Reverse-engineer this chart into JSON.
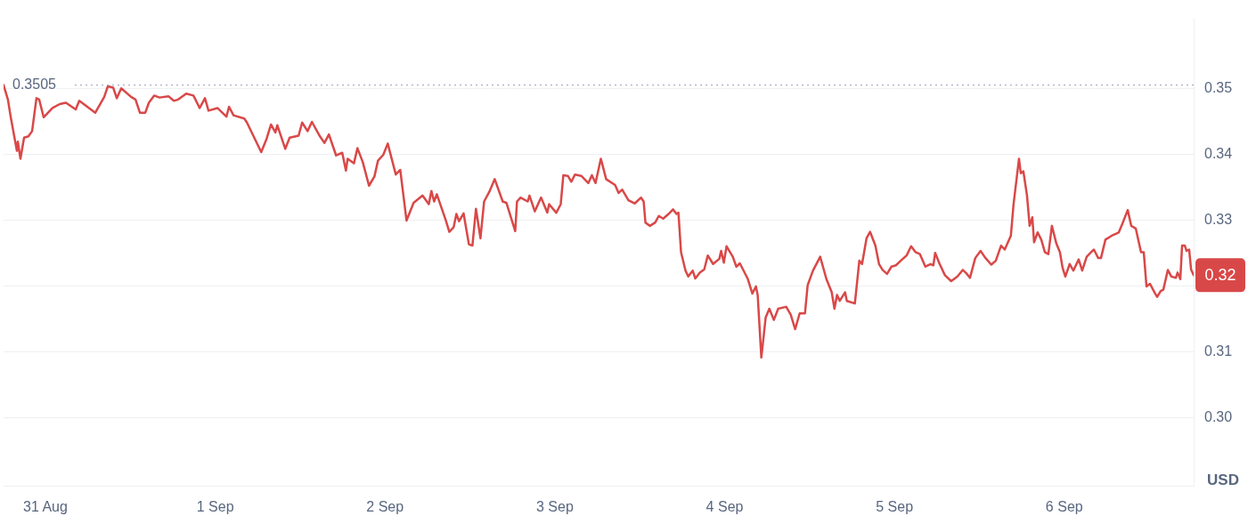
{
  "chart_data": {
    "type": "line",
    "ylabel": "USD",
    "xlim": [
      "--08-30T18:05",
      "--09-06T18:17"
    ],
    "xticks": [
      {
        "value": "--08-31",
        "label": "31 Aug"
      },
      {
        "value": "--09-01",
        "label": "1 Sep"
      },
      {
        "value": "--09-02",
        "label": "2 Sep"
      },
      {
        "value": "--09-03",
        "label": "3 Sep"
      },
      {
        "value": "--09-04",
        "label": "4 Sep"
      },
      {
        "value": "--09-05",
        "label": "5 Sep"
      },
      {
        "value": "--09-06",
        "label": "6 Sep"
      }
    ],
    "ylim": [
      0.2895,
      0.3605
    ],
    "yticks": [
      {
        "value": 0.3,
        "label": "0.30"
      },
      0.31,
      {
        "value": 0.32,
        "label": null
      },
      0.33,
      0.34,
      0.35
    ],
    "grid": "y",
    "legend": false,
    "marker": "none",
    "line_style": "solid",
    "ref_lines": [
      {
        "axis": "y",
        "value": 0.3505,
        "label": "0.3505",
        "color": "#a6b0c3",
        "line_style": "dotted"
      }
    ],
    "annotations": [
      "0.32"
    ],
    "x": [
      "--08-30T18:05",
      "--08-30T18:42",
      "--08-30T19:05",
      "--08-30T19:58",
      "--08-30T20:06",
      "--08-30T20:28",
      "--08-30T20:59",
      "--08-30T21:36",
      "--08-30T22:07",
      "--08-30T22:44",
      "--08-30T23:07",
      "--08-30T23:45",
      "--08-31T01:00",
      "--08-31T02:01",
      "--08-31T02:54",
      "--08-31T04:17",
      "--08-31T04:47",
      "--08-31T07:03",
      "--08-31T08:19",
      "--08-31T08:49",
      "--08-31T09:35",
      "--08-31T10:05",
      "--08-31T10:43",
      "--08-31T12:06",
      "--08-31T12:44",
      "--08-31T13:21",
      "--08-31T14:07",
      "--08-31T14:37",
      "--08-31T15:22",
      "--08-31T16:08",
      "--08-31T17:23",
      "--08-31T18:09",
      "--08-31T18:46",
      "--08-31T19:54",
      "--08-31T20:55",
      "--08-31T21:48",
      "--08-31T22:33",
      "--08-31T23:03",
      "--09-01T00:19",
      "--09-01T01:35",
      "--09-01T01:57",
      "--09-01T02:35",
      "--09-01T04:06",
      "--09-01T04:29",
      "--09-01T06:30",
      "--09-01T07:15",
      "--09-01T07:53",
      "--09-01T08:30",
      "--09-01T08:46",
      "--09-01T09:54",
      "--09-01T10:31",
      "--09-01T11:47",
      "--09-01T12:17",
      "--09-01T13:03",
      "--09-01T13:40",
      "--09-01T14:48",
      "--09-01T15:26",
      "--09-01T16:04",
      "--09-01T17:05",
      "--09-01T17:57",
      "--09-01T18:28",
      "--09-01T18:43",
      "--09-01T19:36",
      "--09-01T20:06",
      "--09-01T20:51",
      "--09-01T21:44",
      "--09-01T22:30",
      "--09-01T23:00",
      "--09-01T23:45",
      "--09-02T00:23",
      "--09-02T01:31",
      "--09-02T02:09",
      "--09-02T03:02",
      "--09-02T04:02",
      "--09-02T05:18",
      "--09-02T06:11",
      "--09-02T06:33",
      "--09-02T06:56",
      "--09-02T07:19",
      "--09-02T08:34",
      "--09-02T09:05",
      "--09-02T09:42",
      "--09-02T10:05",
      "--09-02T10:28",
      "--09-02T11:06",
      "--09-02T11:51",
      "--09-02T12:21",
      "--09-02T12:51",
      "--09-02T13:29",
      "--09-02T14:00",
      "--09-02T14:45",
      "--09-02T15:30",
      "--09-02T16:38",
      "--09-02T17:09",
      "--09-02T17:54",
      "--09-02T18:24",
      "--09-02T18:39",
      "--09-02T19:09",
      "--09-02T20:10",
      "--09-02T20:25",
      "--09-02T21:10",
      "--09-02T22:03",
      "--09-02T22:56",
      "--09-02T23:11",
      "--09-03T00:12",
      "--09-03T00:50",
      "--09-03T01:12",
      "--09-03T01:50",
      "--09-03T02:20",
      "--09-03T02:51",
      "--09-03T03:44",
      "--09-03T04:44",
      "--09-03T05:14",
      "--09-03T05:45",
      "--09-03T06:30",
      "--09-03T07:15",
      "--09-03T08:31",
      "--09-03T09:01",
      "--09-03T09:31",
      "--09-03T10:24",
      "--09-03T11:17",
      "--09-03T12:10",
      "--09-03T12:33",
      "--09-03T12:48",
      "--09-03T13:26",
      "--09-03T14:11",
      "--09-03T14:41",
      "--09-03T15:19",
      "--09-03T16:04",
      "--09-03T16:42",
      "--09-03T17:12",
      "--09-03T17:28",
      "--09-03T17:50",
      "--09-03T18:28",
      "--09-03T18:51",
      "--09-03T19:29",
      "--09-03T19:51",
      "--09-03T20:29",
      "--09-03T21:07",
      "--09-03T21:37",
      "--09-03T22:22",
      "--09-03T23:15",
      "--09-03T23:30",
      "--09-03T23:53",
      "--09-04T00:16",
      "--09-04T01:09",
      "--09-04T01:39",
      "--09-04T02:09",
      "--09-04T03:17",
      "--09-04T03:55",
      "--09-04T04:25",
      "--09-04T04:40",
      "--09-04T05:11",
      "--09-04T05:48",
      "--09-04T06:19",
      "--09-04T06:57",
      "--09-04T07:34",
      "--09-04T08:42",
      "--09-04T09:20",
      "--09-04T09:58",
      "--09-04T10:36",
      "--09-04T11:21",
      "--09-04T11:44",
      "--09-04T12:29",
      "--09-04T13:30",
      "--09-04T14:23",
      "--09-04T15:08",
      "--09-04T15:31",
      "--09-04T15:53",
      "--09-04T16:16",
      "--09-04T17:01",
      "--09-04T17:16",
      "--09-04T18:24",
      "--09-04T19:02",
      "--09-04T19:25",
      "--09-04T20:03",
      "--09-04T20:33",
      "--09-04T21:18",
      "--09-04T21:49",
      "--09-04T22:19",
      "--09-04T22:57",
      "--09-04T23:34",
      "--09-05T00:12",
      "--09-05T01:05",
      "--09-05T01:43",
      "--09-05T02:21",
      "--09-05T02:59",
      "--09-05T03:36",
      "--09-05T04:22",
      "--09-05T05:07",
      "--09-05T05:30",
      "--09-05T05:45",
      "--09-05T06:23",
      "--09-05T07:08",
      "--09-05T08:01",
      "--09-05T08:54",
      "--09-05T09:39",
      "--09-05T10:09",
      "--09-05T10:40",
      "--09-05T11:25",
      "--09-05T12:10",
      "--09-05T12:48",
      "--09-05T13:41",
      "--09-05T14:19",
      "--09-05T15:04",
      "--09-05T15:35",
      "--09-05T16:27",
      "--09-05T16:50",
      "--09-05T17:36",
      "--09-05T17:51",
      "--09-05T18:13",
      "--09-05T18:44",
      "--09-05T19:06",
      "--09-05T19:29",
      "--09-05T19:44",
      "--09-05T20:14",
      "--09-05T20:45",
      "--09-05T21:15",
      "--09-05T21:45",
      "--09-05T22:15",
      "--09-05T22:53",
      "--09-05T23:23",
      "--09-05T23:46",
      "--09-06T00:09",
      "--09-06T00:46",
      "--09-06T01:17",
      "--09-06T02:02",
      "--09-06T02:32",
      "--09-06T03:10",
      "--09-06T03:48",
      "--09-06T04:11",
      "--09-06T04:48",
      "--09-06T05:11",
      "--09-06T05:49",
      "--09-06T06:42",
      "--09-06T07:42",
      "--09-06T08:12",
      "--09-06T08:58",
      "--09-06T09:28",
      "--09-06T10:06",
      "--09-06T10:51",
      "--09-06T11:14",
      "--09-06T11:37",
      "--09-06T12:07",
      "--09-06T12:45",
      "--09-06T13:07",
      "--09-06T13:38",
      "--09-06T14:00",
      "--09-06T14:38",
      "--09-06T15:08",
      "--09-06T15:46",
      "--09-06T16:01",
      "--09-06T16:24",
      "--09-06T16:39",
      "--09-06T17:02",
      "--09-06T17:17",
      "--09-06T17:39",
      "--09-06T17:55",
      "--09-06T18:17"
    ],
    "series": [
      {
        "color": "#d94848",
        "values": [
          0.3505,
          0.3483,
          0.3457,
          0.3405,
          0.3419,
          0.3393,
          0.3425,
          0.3427,
          0.3435,
          0.3485,
          0.3483,
          0.3456,
          0.347,
          0.3476,
          0.3478,
          0.3468,
          0.3481,
          0.3463,
          0.3487,
          0.3503,
          0.3501,
          0.3485,
          0.35,
          0.3487,
          0.3483,
          0.3463,
          0.3463,
          0.3478,
          0.3489,
          0.3486,
          0.3488,
          0.3481,
          0.3483,
          0.3492,
          0.3489,
          0.347,
          0.3485,
          0.3466,
          0.347,
          0.3457,
          0.3472,
          0.3459,
          0.3454,
          0.3448,
          0.3403,
          0.3423,
          0.3445,
          0.3433,
          0.3444,
          0.3408,
          0.3425,
          0.3428,
          0.3448,
          0.3435,
          0.3449,
          0.3427,
          0.3417,
          0.343,
          0.3398,
          0.3402,
          0.3375,
          0.3393,
          0.3386,
          0.3409,
          0.3388,
          0.3352,
          0.3366,
          0.339,
          0.3399,
          0.3416,
          0.3369,
          0.3376,
          0.3299,
          0.3326,
          0.3337,
          0.3324,
          0.3344,
          0.3328,
          0.3339,
          0.33,
          0.3282,
          0.3289,
          0.3309,
          0.3298,
          0.331,
          0.3263,
          0.3261,
          0.3317,
          0.3272,
          0.3328,
          0.3343,
          0.3362,
          0.3328,
          0.3326,
          0.33,
          0.3283,
          0.3328,
          0.3334,
          0.3328,
          0.3337,
          0.3313,
          0.3334,
          0.3311,
          0.3324,
          0.3311,
          0.3324,
          0.3368,
          0.3367,
          0.3358,
          0.3369,
          0.3367,
          0.3356,
          0.3368,
          0.3356,
          0.3393,
          0.3362,
          0.3353,
          0.3341,
          0.3346,
          0.333,
          0.3325,
          0.3334,
          0.3328,
          0.3296,
          0.3291,
          0.3296,
          0.3306,
          0.3302,
          0.3309,
          0.3316,
          0.3309,
          0.3311,
          0.3251,
          0.3223,
          0.3214,
          0.3223,
          0.3211,
          0.322,
          0.3225,
          0.3246,
          0.3233,
          0.3241,
          0.3253,
          0.3235,
          0.326,
          0.3244,
          0.3229,
          0.3234,
          0.321,
          0.3188,
          0.3199,
          0.3186,
          0.3091,
          0.3152,
          0.3165,
          0.3148,
          0.3165,
          0.3168,
          0.3156,
          0.3134,
          0.3158,
          0.3158,
          0.3201,
          0.3223,
          0.3244,
          0.321,
          0.319,
          0.3165,
          0.3186,
          0.3177,
          0.319,
          0.3177,
          0.3173,
          0.3238,
          0.3233,
          0.3272,
          0.3282,
          0.3261,
          0.3233,
          0.3224,
          0.3218,
          0.3229,
          0.3231,
          0.324,
          0.3246,
          0.326,
          0.3251,
          0.3248,
          0.3229,
          0.3233,
          0.3231,
          0.325,
          0.3233,
          0.3216,
          0.3207,
          0.3214,
          0.3224,
          0.3219,
          0.3212,
          0.3242,
          0.3253,
          0.3243,
          0.3232,
          0.3238,
          0.3261,
          0.3255,
          0.3276,
          0.3324,
          0.3393,
          0.3371,
          0.3374,
          0.3337,
          0.3291,
          0.3304,
          0.3266,
          0.3281,
          0.327,
          0.3251,
          0.3248,
          0.3291,
          0.3264,
          0.3251,
          0.3227,
          0.3214,
          0.3233,
          0.3223,
          0.324,
          0.3223,
          0.3244,
          0.3251,
          0.3255,
          0.3242,
          0.3242,
          0.327,
          0.3276,
          0.3281,
          0.3294,
          0.3315,
          0.3291,
          0.3287,
          0.3251,
          0.3251,
          0.3199,
          0.3203,
          0.319,
          0.3183,
          0.3192,
          0.3194,
          0.3224,
          0.3214,
          0.3212,
          0.322,
          0.321,
          0.3261,
          0.3261,
          0.3253,
          0.3255,
          0.3225,
          0.3216
        ]
      }
    ]
  }
}
